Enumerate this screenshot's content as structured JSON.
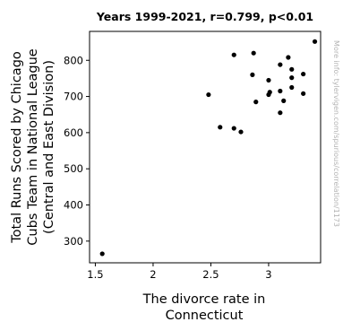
{
  "chart_data": {
    "type": "scatter",
    "title": "Years 1999-2021, r=0.799, p<0.01",
    "xlabel_lines": [
      "The divorce rate in",
      "Connecticut"
    ],
    "ylabel_lines": [
      "Total Runs Scored by Chicago",
      "Cubs Team in National League",
      "(Central and East Division)"
    ],
    "xlim": [
      1.45,
      3.45
    ],
    "ylim": [
      240,
      880
    ],
    "x_ticks": [
      1.5,
      2,
      2.5,
      3
    ],
    "x_tick_labels": [
      "1.5",
      "2",
      "2.5",
      "3"
    ],
    "y_ticks": [
      300,
      400,
      500,
      600,
      700,
      800
    ],
    "y_tick_labels": [
      "300",
      "400",
      "500",
      "600",
      "700",
      "800"
    ],
    "grid": false,
    "marker_color": "#000000",
    "points": [
      {
        "x": 1.56,
        "y": 265
      },
      {
        "x": 2.48,
        "y": 705
      },
      {
        "x": 2.58,
        "y": 615
      },
      {
        "x": 2.7,
        "y": 612
      },
      {
        "x": 2.7,
        "y": 815
      },
      {
        "x": 2.76,
        "y": 602
      },
      {
        "x": 2.86,
        "y": 760
      },
      {
        "x": 2.87,
        "y": 820
      },
      {
        "x": 2.89,
        "y": 685
      },
      {
        "x": 3.0,
        "y": 705
      },
      {
        "x": 3.0,
        "y": 745
      },
      {
        "x": 3.01,
        "y": 712
      },
      {
        "x": 3.1,
        "y": 655
      },
      {
        "x": 3.1,
        "y": 715
      },
      {
        "x": 3.1,
        "y": 788
      },
      {
        "x": 3.13,
        "y": 688
      },
      {
        "x": 3.17,
        "y": 808
      },
      {
        "x": 3.2,
        "y": 725
      },
      {
        "x": 3.2,
        "y": 752
      },
      {
        "x": 3.2,
        "y": 775
      },
      {
        "x": 3.3,
        "y": 708
      },
      {
        "x": 3.3,
        "y": 762
      },
      {
        "x": 3.4,
        "y": 852
      }
    ]
  },
  "watermark": "More info: tylervigen.com/spurious/correlation/1173"
}
